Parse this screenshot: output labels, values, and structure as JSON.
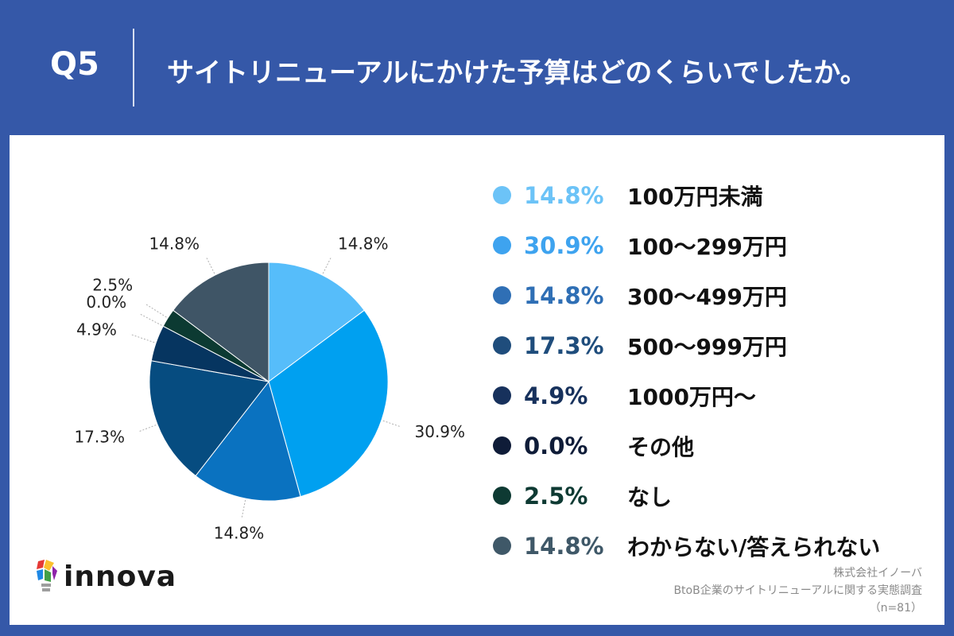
{
  "header": {
    "question": "Q5",
    "title": "サイトリニューアルにかけた予算はどのくらいでしたか。"
  },
  "chart_data": {
    "type": "pie",
    "title": "サイトリニューアルにかけた予算はどのくらいでしたか。",
    "categories": [
      "100万円未満",
      "100〜299万円",
      "300〜499万円",
      "500〜999万円",
      "1000万円〜",
      "その他",
      "なし",
      "わからない/答えられない"
    ],
    "values": [
      14.8,
      30.9,
      14.8,
      17.3,
      4.9,
      0.0,
      2.5,
      14.8
    ],
    "labels": [
      "14.8%",
      "30.9%",
      "14.8%",
      "17.3%",
      "4.9%",
      "0.0%",
      "2.5%",
      "14.8%"
    ],
    "colors": [
      "#56bdfa",
      "#00a0f0",
      "#0a72c0",
      "#064c80",
      "#063560",
      "#0b1a3a",
      "#0c3a32",
      "#3f5566"
    ],
    "legend_colors": [
      "#6cc3f7",
      "#3ea3ef",
      "#2f6fb5",
      "#1f4d7c",
      "#17315c",
      "#0f1c38",
      "#0e3a33",
      "#3f5868"
    ],
    "legend_placement": "right",
    "start_angle": "top",
    "direction": "clockwise"
  },
  "legend": {
    "items": [
      {
        "pct": "14.8%",
        "label": "100万円未満"
      },
      {
        "pct": "30.9%",
        "label": "100〜299万円"
      },
      {
        "pct": "14.8%",
        "label": "300〜499万円"
      },
      {
        "pct": "17.3%",
        "label": "500〜999万円"
      },
      {
        "pct": "4.9%",
        "label": "1000万円〜"
      },
      {
        "pct": "0.0%",
        "label": "その他"
      },
      {
        "pct": "2.5%",
        "label": "なし"
      },
      {
        "pct": "14.8%",
        "label": "わからない/答えられない"
      }
    ]
  },
  "brand": {
    "logo_text": "innova",
    "logo_icon": "lightbulb-icon"
  },
  "source": {
    "company": "株式会社イノーバ",
    "survey": "BtoB企業のサイトリニューアルに関する実態調査",
    "sample": "（n=81）"
  }
}
